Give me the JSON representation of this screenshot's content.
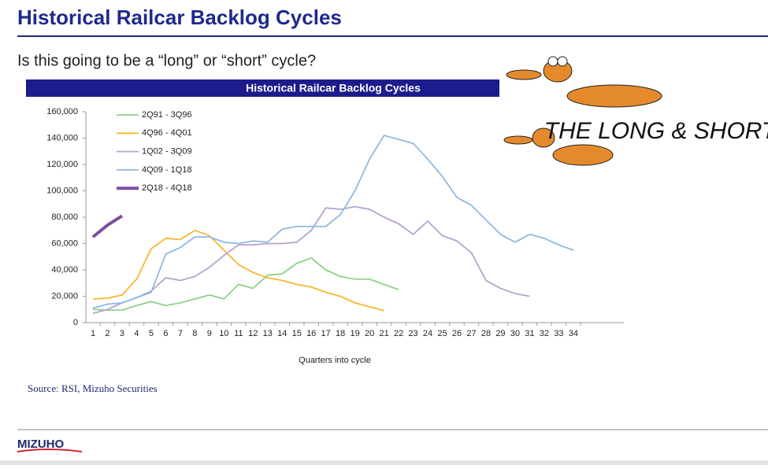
{
  "slide_title": "Historical Railcar Backlog Cycles",
  "subtitle": "Is this going to be a “long” or “short” cycle?",
  "cartoon_caption": "THE LONG & SHORT",
  "source": "Source: RSI, Mizuho Securities",
  "logo": "MIZUHO",
  "chart_data": {
    "type": "line",
    "title": "Historical Railcar Backlog Cycles",
    "x_label": "Quarters into cycle",
    "categories": [
      1,
      2,
      3,
      4,
      5,
      6,
      7,
      8,
      9,
      10,
      11,
      12,
      13,
      14,
      15,
      16,
      17,
      18,
      19,
      20,
      21,
      22,
      23,
      24,
      25,
      26,
      27,
      28,
      29,
      30,
      31,
      32,
      33,
      34
    ],
    "ylim": [
      0,
      160000
    ],
    "yticks": [
      0,
      {
        "value": 20000,
        "label": "20,000"
      },
      {
        "value": 40000,
        "label": "40,000"
      },
      {
        "value": 60000,
        "label": "60,000"
      },
      {
        "value": 80000,
        "label": "80,000"
      },
      {
        "value": 100000,
        "label": "100,000"
      },
      {
        "value": 120000,
        "label": "120,000"
      },
      {
        "value": 140000,
        "label": "140,000"
      },
      {
        "value": 160000,
        "label": "160,000"
      }
    ],
    "grid": false,
    "series": [
      {
        "name": "2Q91 - 3Q96",
        "color": "#8fd18a",
        "width": 1.8,
        "values": [
          10000,
          9500,
          9500,
          13000,
          16000,
          13000,
          15000,
          18000,
          21000,
          18000,
          29000,
          26000,
          36000,
          37000,
          45000,
          49000,
          40000,
          35000,
          33000,
          33000,
          29000,
          25000,
          null,
          null,
          null,
          null,
          null,
          null,
          null,
          null,
          null,
          null,
          null,
          null
        ]
      },
      {
        "name": "4Q96 - 4Q01",
        "color": "#f5b82e",
        "width": 1.8,
        "values": [
          18000,
          18500,
          21000,
          33000,
          56000,
          64000,
          63000,
          70000,
          66000,
          55000,
          44000,
          38000,
          34000,
          32000,
          29000,
          27000,
          23000,
          20000,
          15000,
          12000,
          9000,
          null,
          null,
          null,
          null,
          null,
          null,
          null,
          null,
          null,
          null,
          null,
          null,
          null
        ]
      },
      {
        "name": "1Q02 - 3Q09",
        "color": "#b7a3cf",
        "width": 1.8,
        "values": [
          7000,
          10000,
          15000,
          19000,
          24000,
          34000,
          32000,
          35000,
          42000,
          51000,
          59000,
          59000,
          60000,
          60000,
          61000,
          70000,
          87000,
          86000,
          88000,
          86000,
          80000,
          75000,
          67000,
          77000,
          66000,
          62000,
          53000,
          32000,
          26000,
          22000,
          20000,
          null,
          null,
          null
        ]
      },
      {
        "name": "4Q09 - 1Q18",
        "color": "#8db9e2",
        "width": 1.8,
        "values": [
          11000,
          14000,
          15000,
          19000,
          23000,
          52000,
          57000,
          65000,
          65000,
          61000,
          60000,
          62000,
          61000,
          71000,
          73000,
          73000,
          73000,
          82000,
          100000,
          124000,
          142000,
          139000,
          136000,
          124000,
          111000,
          95000,
          89000,
          78000,
          67000,
          61000,
          67000,
          64000,
          59000,
          55000
        ]
      },
      {
        "name": "2Q18 - 4Q18",
        "color": "#7b4f9e",
        "width": 4,
        "values": [
          65000,
          74000,
          81000,
          null,
          null,
          null,
          null,
          null,
          null,
          null,
          null,
          null,
          null,
          null,
          null,
          null,
          null,
          null,
          null,
          null,
          null,
          null,
          null,
          null,
          null,
          null,
          null,
          null,
          null,
          null,
          null,
          null,
          null,
          null
        ]
      }
    ]
  }
}
